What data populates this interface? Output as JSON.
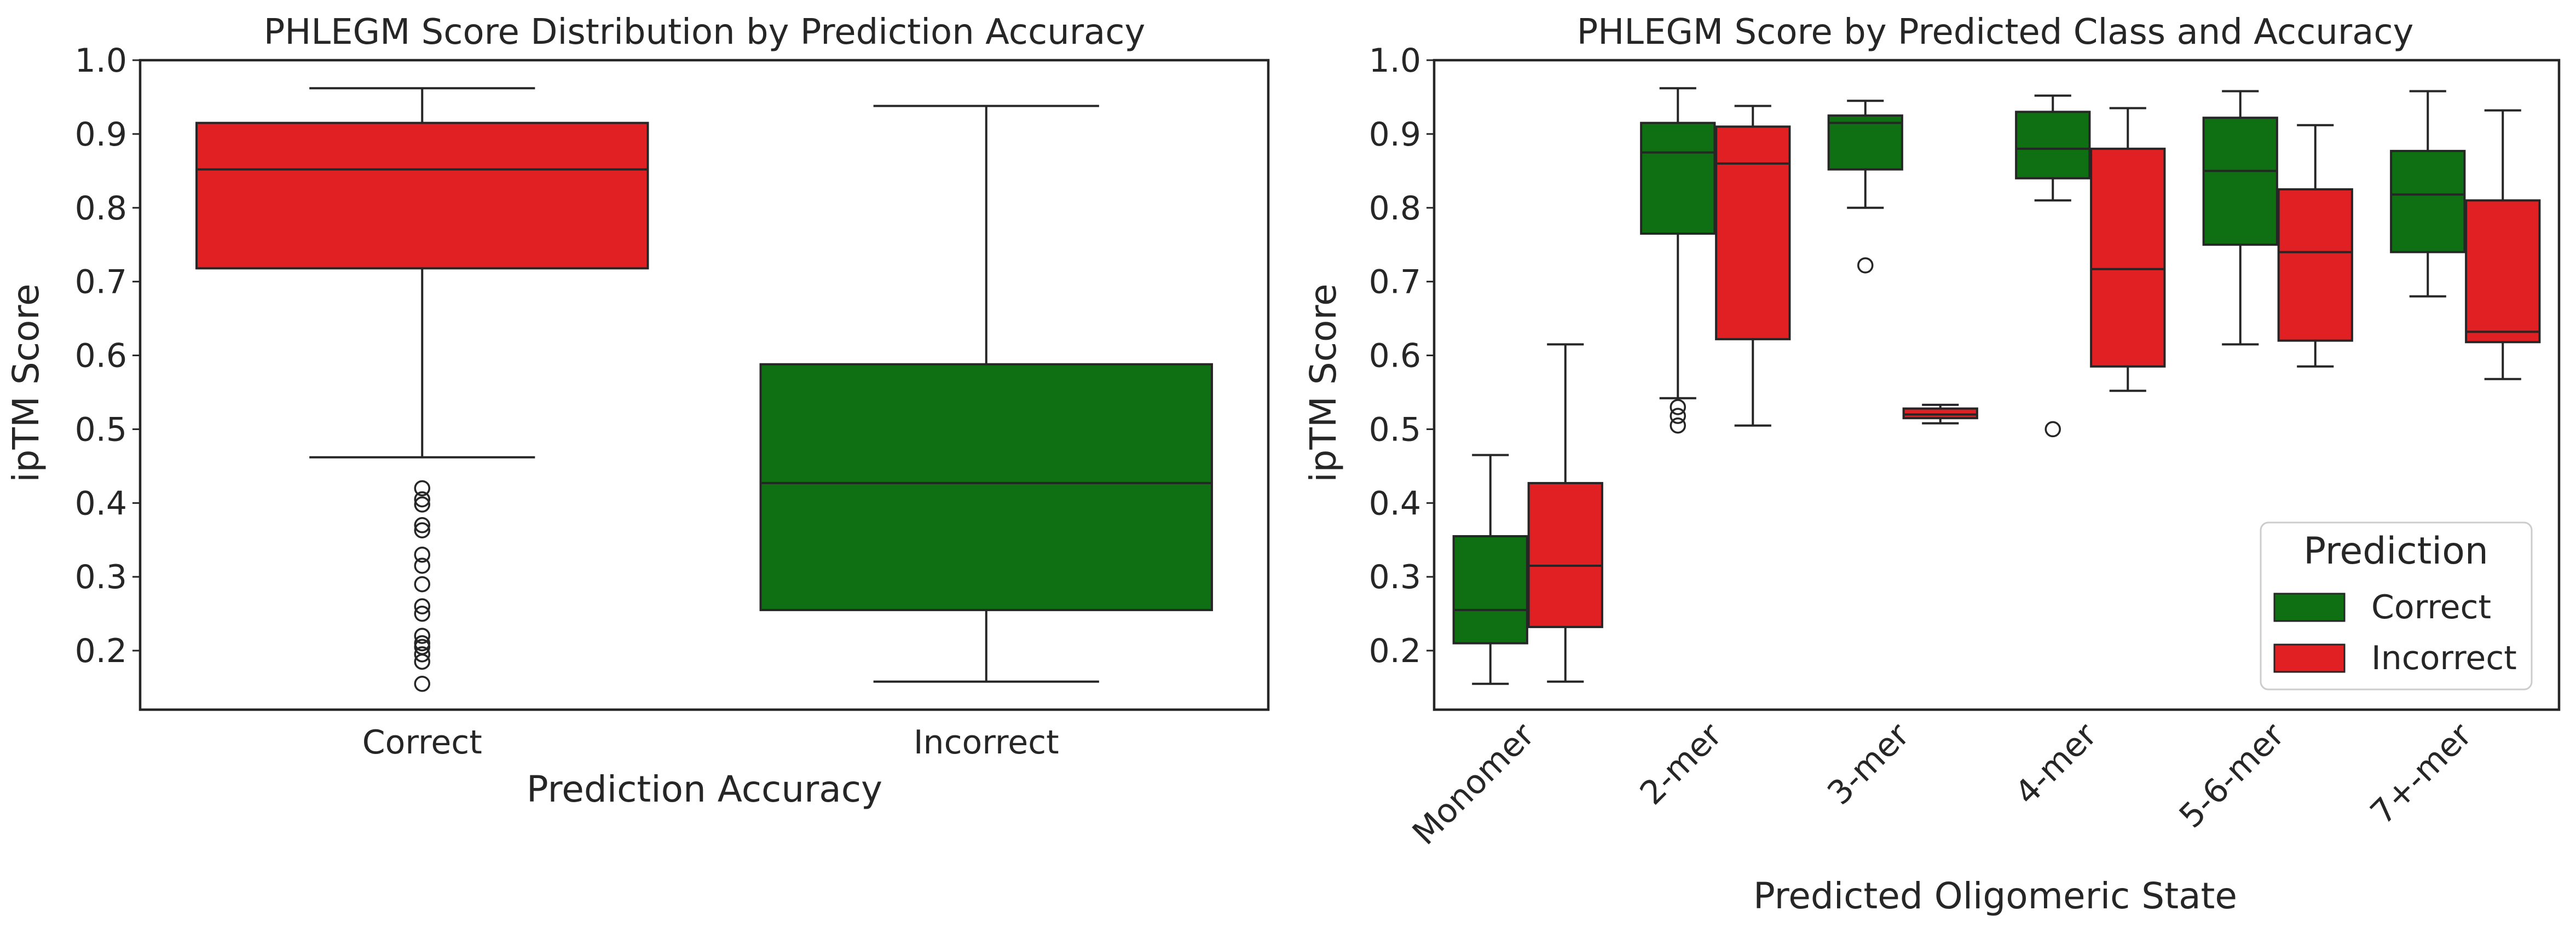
{
  "colors": {
    "correct": "#0e7012",
    "incorrect": "#e02022",
    "text": "#262626"
  },
  "chart_data": [
    {
      "type": "box",
      "title": "PHLEGM Score Distribution by Prediction Accuracy",
      "xlabel": "Prediction Accuracy",
      "ylabel": "ipTM Score",
      "ylim": [
        0.12,
        1.0
      ],
      "yticks": [
        "0.2",
        "0.3",
        "0.4",
        "0.5",
        "0.6",
        "0.7",
        "0.8",
        "0.9",
        "1.0"
      ],
      "grid": false,
      "categories": [
        "Correct",
        "Incorrect"
      ],
      "boxes": [
        {
          "category": "Correct",
          "color_key": "incorrect",
          "whisker_low": 0.462,
          "q1": 0.718,
          "median": 0.852,
          "q3": 0.915,
          "whisker_high": 0.962,
          "fliers": [
            0.42,
            0.405,
            0.398,
            0.37,
            0.363,
            0.33,
            0.315,
            0.29,
            0.26,
            0.25,
            0.22,
            0.21,
            0.205,
            0.195,
            0.185,
            0.155
          ]
        },
        {
          "category": "Incorrect",
          "color_key": "correct",
          "whisker_low": 0.158,
          "q1": 0.255,
          "median": 0.427,
          "q3": 0.588,
          "whisker_high": 0.938,
          "fliers": []
        }
      ]
    },
    {
      "type": "box",
      "title": "PHLEGM Score by Predicted Class and Accuracy",
      "xlabel": "Predicted Oligomeric State",
      "ylabel": "ipTM Score",
      "ylim": [
        0.12,
        1.0
      ],
      "yticks": [
        "0.2",
        "0.3",
        "0.4",
        "0.5",
        "0.6",
        "0.7",
        "0.8",
        "0.9",
        "1.0"
      ],
      "grid": false,
      "categories": [
        "Monomer",
        "2-mer",
        "3-mer",
        "4-mer",
        "5-6-mer",
        "7+-mer"
      ],
      "legend": {
        "title": "Prediction",
        "position": "lower-right",
        "entries": [
          "Correct",
          "Incorrect"
        ]
      },
      "series": [
        {
          "name": "Correct",
          "color_key": "correct",
          "boxes": [
            {
              "category": "Monomer",
              "whisker_low": 0.155,
              "q1": 0.21,
              "median": 0.255,
              "q3": 0.355,
              "whisker_high": 0.465,
              "fliers": []
            },
            {
              "category": "2-mer",
              "whisker_low": 0.542,
              "q1": 0.765,
              "median": 0.875,
              "q3": 0.915,
              "whisker_high": 0.962,
              "fliers": [
                0.53,
                0.518,
                0.505
              ]
            },
            {
              "category": "3-mer",
              "whisker_low": 0.8,
              "q1": 0.852,
              "median": 0.915,
              "q3": 0.925,
              "whisker_high": 0.945,
              "fliers": [
                0.722
              ]
            },
            {
              "category": "4-mer",
              "whisker_low": 0.81,
              "q1": 0.84,
              "median": 0.88,
              "q3": 0.93,
              "whisker_high": 0.952,
              "fliers": [
                0.5
              ]
            },
            {
              "category": "5-6-mer",
              "whisker_low": 0.615,
              "q1": 0.75,
              "median": 0.85,
              "q3": 0.922,
              "whisker_high": 0.958,
              "fliers": []
            },
            {
              "category": "7+-mer",
              "whisker_low": 0.68,
              "q1": 0.74,
              "median": 0.818,
              "q3": 0.877,
              "whisker_high": 0.958,
              "fliers": []
            }
          ]
        },
        {
          "name": "Incorrect",
          "color_key": "incorrect",
          "boxes": [
            {
              "category": "Monomer",
              "whisker_low": 0.158,
              "q1": 0.232,
              "median": 0.315,
              "q3": 0.427,
              "whisker_high": 0.615,
              "fliers": []
            },
            {
              "category": "2-mer",
              "whisker_low": 0.505,
              "q1": 0.622,
              "median": 0.86,
              "q3": 0.91,
              "whisker_high": 0.938,
              "fliers": []
            },
            {
              "category": "3-mer",
              "whisker_low": 0.508,
              "q1": 0.515,
              "median": 0.52,
              "q3": 0.528,
              "whisker_high": 0.533,
              "fliers": []
            },
            {
              "category": "4-mer",
              "whisker_low": 0.552,
              "q1": 0.585,
              "median": 0.717,
              "q3": 0.88,
              "whisker_high": 0.935,
              "fliers": []
            },
            {
              "category": "5-6-mer",
              "whisker_low": 0.585,
              "q1": 0.62,
              "median": 0.74,
              "q3": 0.825,
              "whisker_high": 0.912,
              "fliers": []
            },
            {
              "category": "7+-mer",
              "whisker_low": 0.568,
              "q1": 0.618,
              "median": 0.632,
              "q3": 0.81,
              "whisker_high": 0.932,
              "fliers": []
            }
          ]
        }
      ]
    }
  ]
}
